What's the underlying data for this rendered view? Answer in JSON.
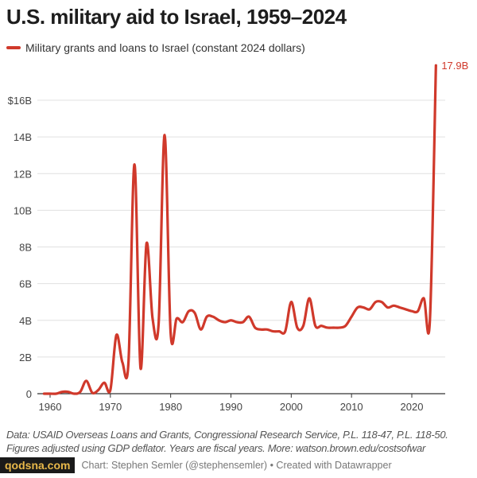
{
  "chart_data": {
    "type": "line",
    "title": "U.S. military aid to Israel, 1959–2024",
    "legend": "Military grants and loans to Israel (constant 2024 dollars)",
    "legend_placement": "top-left",
    "xlabel": "",
    "ylabel": "",
    "ylim": [
      0,
      18
    ],
    "yticks": [
      0,
      2,
      4,
      6,
      8,
      10,
      12,
      14,
      16
    ],
    "ytick_labels": [
      "0",
      "2B",
      "4B",
      "6B",
      "8B",
      "10B",
      "12B",
      "14B",
      "$16B"
    ],
    "xticks": [
      1960,
      1970,
      1980,
      1990,
      2000,
      2010,
      2020
    ],
    "xtick_labels": [
      "1960",
      "1970",
      "1980",
      "1990",
      "2000",
      "2010",
      "2020"
    ],
    "grid": true,
    "color": "#d0392b",
    "end_label": "17.9B",
    "series": [
      {
        "name": "Military grants and loans to Israel (constant 2024 dollars)",
        "x": [
          1959,
          1960,
          1961,
          1962,
          1963,
          1964,
          1965,
          1966,
          1967,
          1968,
          1969,
          1970,
          1971,
          1972,
          1973,
          1974,
          1975,
          1976,
          1977,
          1978,
          1979,
          1980,
          1981,
          1982,
          1983,
          1984,
          1985,
          1986,
          1987,
          1988,
          1989,
          1990,
          1991,
          1992,
          1993,
          1994,
          1995,
          1996,
          1997,
          1998,
          1999,
          2000,
          2001,
          2002,
          2003,
          2004,
          2005,
          2006,
          2007,
          2008,
          2009,
          2010,
          2011,
          2012,
          2013,
          2014,
          2015,
          2016,
          2017,
          2018,
          2019,
          2020,
          2021,
          2022,
          2023,
          2024
        ],
        "values": [
          0,
          0,
          0,
          0.1,
          0.1,
          0,
          0.1,
          0.7,
          0.05,
          0.2,
          0.6,
          0.2,
          3.2,
          1.7,
          1.7,
          12.5,
          1.4,
          8.2,
          4.1,
          3.8,
          14.1,
          3.3,
          4.1,
          3.9,
          4.5,
          4.4,
          3.5,
          4.2,
          4.2,
          4.0,
          3.9,
          4.0,
          3.9,
          3.9,
          4.2,
          3.6,
          3.5,
          3.5,
          3.4,
          3.4,
          3.4,
          5.0,
          3.6,
          3.7,
          5.2,
          3.7,
          3.7,
          3.6,
          3.6,
          3.6,
          3.7,
          4.2,
          4.7,
          4.7,
          4.6,
          5.0,
          5.0,
          4.7,
          4.8,
          4.7,
          4.6,
          4.5,
          4.5,
          5.2,
          4.0,
          17.9
        ]
      }
    ]
  },
  "footer": {
    "notes_line1": "Data: USAID Overseas Loans and Grants, Congressional Research Service, P.L. 118-47, P.L. 118-50.",
    "notes_line2": "Figures adjusted using GDP deflator. Years are fiscal years. More: watson.brown.edu/costsofwar",
    "credit": "Chart: Stephen Semler (@stephensemler) • Created with Datawrapper",
    "watermark": "qodsna.com"
  }
}
